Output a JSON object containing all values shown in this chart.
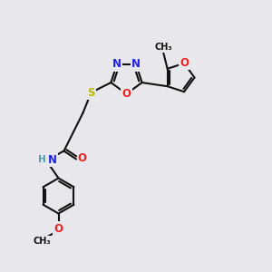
{
  "bg_color": "#e8e8ec",
  "atom_colors": {
    "C": "#000000",
    "N": "#2222ee",
    "O": "#ee2222",
    "S": "#bbbb00",
    "H": "#5599aa"
  },
  "bond_color": "#111111",
  "bond_width": 1.5,
  "font_size_atom": 8.5,
  "font_size_small": 7.0,
  "xlim": [
    0,
    10
  ],
  "ylim": [
    0,
    10
  ]
}
